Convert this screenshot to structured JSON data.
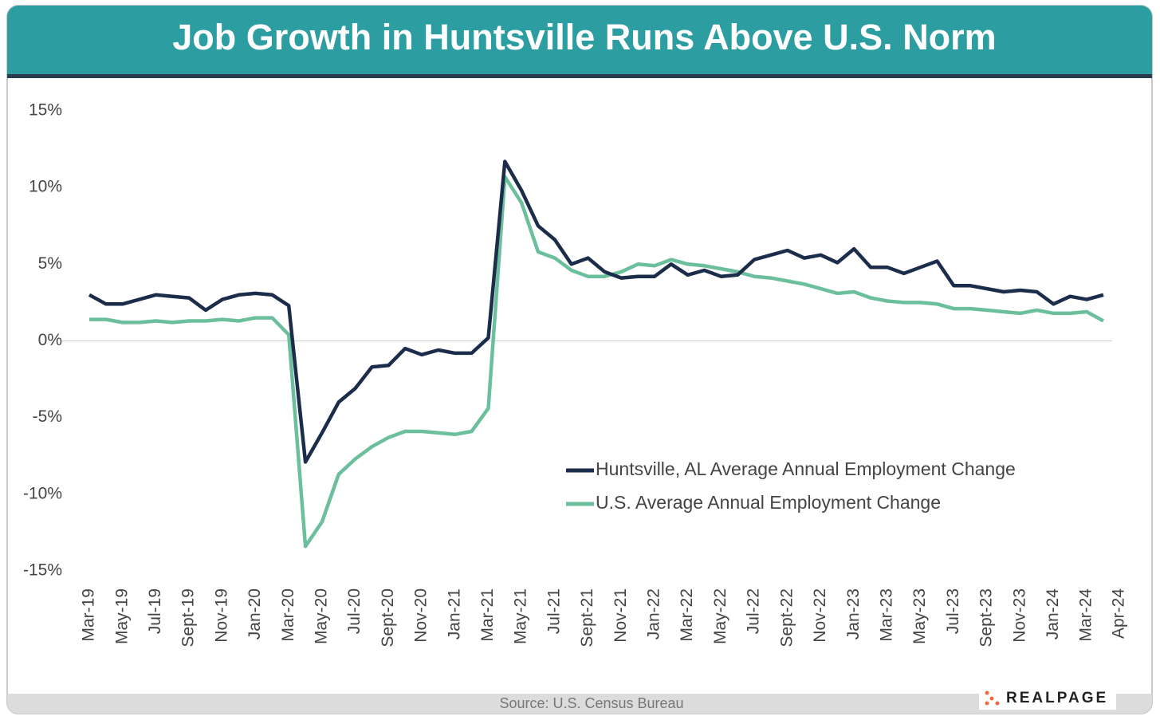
{
  "chart_data": {
    "type": "line",
    "title": "Job Growth in Huntsville Runs Above U.S. Norm",
    "source": "Source: U.S. Census Bureau",
    "brand": "REALPAGE",
    "categories": [
      "Mar-19",
      null,
      "May-19",
      null,
      "Jul-19",
      null,
      "Sept-19",
      null,
      "Nov-19",
      null,
      "Jan-20",
      null,
      "Mar-20",
      null,
      "May-20",
      null,
      "Jul-20",
      null,
      "Sept-20",
      null,
      "Nov-20",
      null,
      "Jan-21",
      null,
      "Mar-21",
      null,
      "May-21",
      null,
      "Jul-21",
      null,
      "Sept-21",
      null,
      "Nov-21",
      null,
      "Jan-22",
      null,
      "Mar-22",
      null,
      "May-22",
      null,
      "Jul-22",
      null,
      "Sept-22",
      null,
      "Nov-22",
      null,
      "Jan-23",
      null,
      "Mar-23",
      null,
      "May-23",
      null,
      "Jul-23",
      null,
      "Sept-23",
      null,
      "Nov-23",
      null,
      "Jan-24",
      null,
      "Mar-24",
      "Apr-24"
    ],
    "series": [
      {
        "name": "Huntsville, AL Average Annual Employment Change",
        "color": "#1b2d4a",
        "values": [
          3.0,
          2.4,
          2.4,
          2.7,
          3.0,
          2.9,
          2.8,
          2.0,
          2.7,
          3.0,
          3.1,
          3.0,
          2.3,
          -7.9,
          -6.0,
          -4.0,
          -3.1,
          -1.7,
          -1.6,
          -0.5,
          -0.9,
          -0.6,
          -0.8,
          -0.8,
          0.2,
          11.7,
          9.8,
          7.5,
          6.6,
          5.0,
          5.4,
          4.5,
          4.1,
          4.2,
          4.2,
          5.0,
          4.3,
          4.6,
          4.2,
          4.3,
          5.3,
          5.6,
          5.9,
          5.4,
          5.6,
          5.1,
          6.0,
          4.8,
          4.8,
          4.4,
          4.8,
          5.2,
          3.6,
          3.6,
          3.4,
          3.2,
          3.3,
          3.2,
          2.4,
          2.9,
          2.7,
          3.0
        ]
      },
      {
        "name": "U.S. Average Annual Employment Change",
        "color": "#6cbf9c",
        "values": [
          1.4,
          1.4,
          1.2,
          1.2,
          1.3,
          1.2,
          1.3,
          1.3,
          1.4,
          1.3,
          1.5,
          1.5,
          0.4,
          -13.4,
          -11.8,
          -8.7,
          -7.7,
          -6.9,
          -6.3,
          -5.9,
          -5.9,
          -6.0,
          -6.1,
          -5.9,
          -4.4,
          10.7,
          9.0,
          5.8,
          5.4,
          4.6,
          4.2,
          4.2,
          4.5,
          5.0,
          4.9,
          5.3,
          5.0,
          4.9,
          4.7,
          4.5,
          4.2,
          4.1,
          3.9,
          3.7,
          3.4,
          3.1,
          3.2,
          2.8,
          2.6,
          2.5,
          2.5,
          2.4,
          2.1,
          2.1,
          2.0,
          1.9,
          1.8,
          2.0,
          1.8,
          1.8,
          1.9,
          1.3
        ]
      }
    ],
    "ylim": [
      -15,
      15
    ],
    "yticks": [
      {
        "value": -15,
        "label": "-15%"
      },
      {
        "value": -10,
        "label": "-10%"
      },
      {
        "value": -5,
        "label": "-5%"
      },
      {
        "value": 0,
        "label": "0%"
      },
      {
        "value": 5,
        "label": "5%"
      },
      {
        "value": 10,
        "label": "10%"
      },
      {
        "value": 15,
        "label": "15%"
      }
    ],
    "grid": false
  }
}
